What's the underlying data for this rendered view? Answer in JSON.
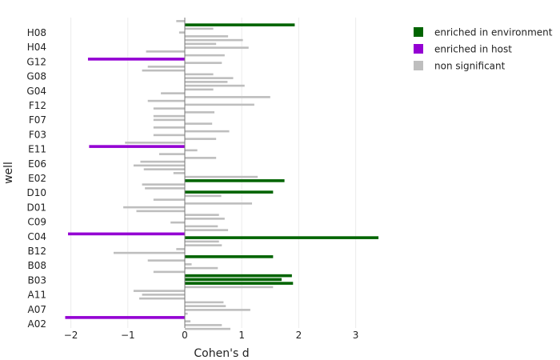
{
  "chart_data": {
    "type": "bar",
    "orientation": "horizontal",
    "xlabel": "Cohen's d",
    "ylabel": "well",
    "xlim": [
      -2.2,
      3.55
    ],
    "x_ticks": [
      -2,
      -1,
      0,
      1,
      2,
      3
    ],
    "y_tick_labels": [
      "A02",
      "A07",
      "A11",
      "B03",
      "B08",
      "B12",
      "C04",
      "C09",
      "D01",
      "D10",
      "E02",
      "E06",
      "E11",
      "F03",
      "F07",
      "F12",
      "G04",
      "G08",
      "G12",
      "H04",
      "H08"
    ],
    "legend": [
      {
        "label": "enriched in environment",
        "color": "#006400"
      },
      {
        "label": "enriched in host",
        "color": "#9400D3"
      },
      {
        "label": "non significant",
        "color": "#BEBEBE"
      }
    ],
    "legend_position": "right",
    "grid": true,
    "values": [
      {
        "v": 0.8,
        "c": "ns"
      },
      {
        "v": 0.65,
        "c": "ns"
      },
      {
        "v": 0.1,
        "c": "ns"
      },
      {
        "v": -2.1,
        "c": "host"
      },
      {
        "v": 0.05,
        "c": "ns"
      },
      {
        "v": 1.15,
        "c": "ns"
      },
      {
        "v": 0.72,
        "c": "ns"
      },
      {
        "v": 0.68,
        "c": "ns"
      },
      {
        "v": -0.8,
        "c": "ns"
      },
      {
        "v": -0.75,
        "c": "ns"
      },
      {
        "v": -0.9,
        "c": "ns"
      },
      {
        "v": 1.55,
        "c": "ns"
      },
      {
        "v": 1.9,
        "c": "env"
      },
      {
        "v": 1.7,
        "c": "env"
      },
      {
        "v": 1.88,
        "c": "env"
      },
      {
        "v": -0.55,
        "c": "ns"
      },
      {
        "v": 0.58,
        "c": "ns"
      },
      {
        "v": 0.12,
        "c": "ns"
      },
      {
        "v": -0.65,
        "c": "ns"
      },
      {
        "v": 1.55,
        "c": "env"
      },
      {
        "v": -1.25,
        "c": "ns"
      },
      {
        "v": -0.15,
        "c": "ns"
      },
      {
        "v": 0.65,
        "c": "ns"
      },
      {
        "v": 0.6,
        "c": "ns"
      },
      {
        "v": 3.4,
        "c": "env"
      },
      {
        "v": -2.05,
        "c": "host"
      },
      {
        "v": 0.76,
        "c": "ns"
      },
      {
        "v": 0.58,
        "c": "ns"
      },
      {
        "v": -0.25,
        "c": "ns"
      },
      {
        "v": 0.7,
        "c": "ns"
      },
      {
        "v": 0.6,
        "c": "ns"
      },
      {
        "v": -0.85,
        "c": "ns"
      },
      {
        "v": -1.08,
        "c": "ns"
      },
      {
        "v": 1.18,
        "c": "ns"
      },
      {
        "v": -0.55,
        "c": "ns"
      },
      {
        "v": 0.64,
        "c": "ns"
      },
      {
        "v": 1.55,
        "c": "env"
      },
      {
        "v": -0.7,
        "c": "ns"
      },
      {
        "v": -0.75,
        "c": "ns"
      },
      {
        "v": 1.75,
        "c": "env"
      },
      {
        "v": 1.28,
        "c": "ns"
      },
      {
        "v": -0.2,
        "c": "ns"
      },
      {
        "v": -0.72,
        "c": "ns"
      },
      {
        "v": -0.9,
        "c": "ns"
      },
      {
        "v": -0.78,
        "c": "ns"
      },
      {
        "v": 0.55,
        "c": "ns"
      },
      {
        "v": -0.45,
        "c": "ns"
      },
      {
        "v": 0.22,
        "c": "ns"
      },
      {
        "v": -1.68,
        "c": "host"
      },
      {
        "v": -1.05,
        "c": "ns"
      },
      {
        "v": 0.55,
        "c": "ns"
      },
      {
        "v": -0.55,
        "c": "ns"
      },
      {
        "v": 0.78,
        "c": "ns"
      },
      {
        "v": -0.55,
        "c": "ns"
      },
      {
        "v": 0.48,
        "c": "ns"
      },
      {
        "v": -0.55,
        "c": "ns"
      },
      {
        "v": -0.55,
        "c": "ns"
      },
      {
        "v": 0.52,
        "c": "ns"
      },
      {
        "v": -0.55,
        "c": "ns"
      },
      {
        "v": 1.22,
        "c": "ns"
      },
      {
        "v": -0.65,
        "c": "ns"
      },
      {
        "v": 1.5,
        "c": "ns"
      },
      {
        "v": -0.42,
        "c": "ns"
      },
      {
        "v": 0.5,
        "c": "ns"
      },
      {
        "v": 1.05,
        "c": "ns"
      },
      {
        "v": 0.75,
        "c": "ns"
      },
      {
        "v": 0.85,
        "c": "ns"
      },
      {
        "v": 0.5,
        "c": "ns"
      },
      {
        "v": -0.75,
        "c": "ns"
      },
      {
        "v": -0.65,
        "c": "ns"
      },
      {
        "v": 0.65,
        "c": "ns"
      },
      {
        "v": -1.7,
        "c": "host"
      },
      {
        "v": 0.7,
        "c": "ns"
      },
      {
        "v": -0.68,
        "c": "ns"
      },
      {
        "v": 1.12,
        "c": "ns"
      },
      {
        "v": 0.55,
        "c": "ns"
      },
      {
        "v": 1.02,
        "c": "ns"
      },
      {
        "v": 0.76,
        "c": "ns"
      },
      {
        "v": -0.1,
        "c": "ns"
      },
      {
        "v": 0.5,
        "c": "ns"
      },
      {
        "v": 1.93,
        "c": "env"
      },
      {
        "v": -0.15,
        "c": "ns"
      }
    ]
  }
}
